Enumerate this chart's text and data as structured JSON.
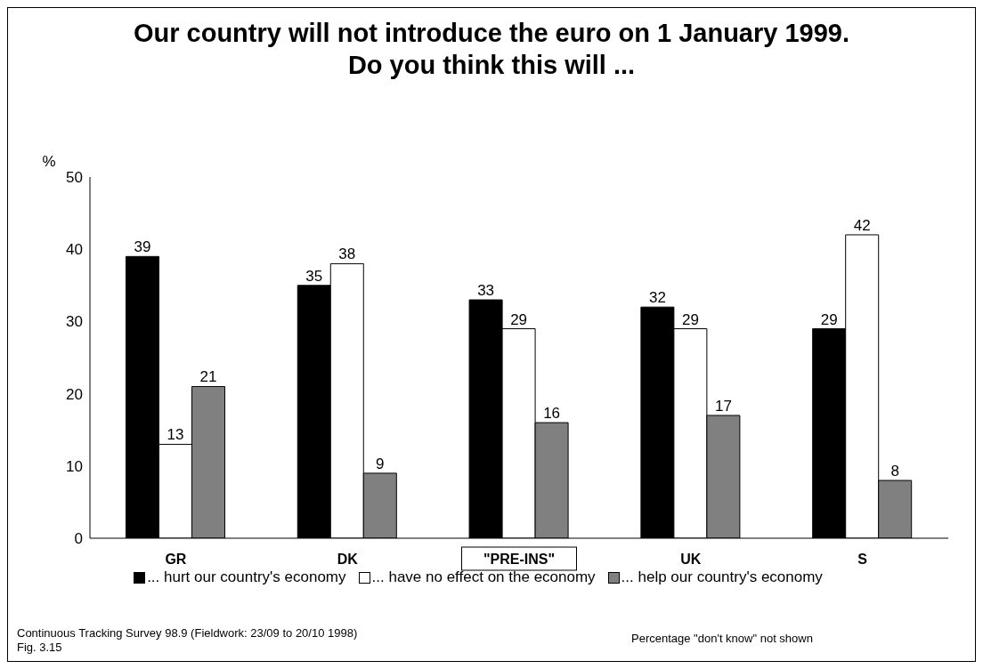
{
  "chart_data": {
    "type": "bar",
    "title": "Our country will not introduce the euro on 1 January 1999.\nDo you think this will ...",
    "ylabel": "%",
    "categories": [
      "GR",
      "DK",
      "\"PRE-INS\"",
      "UK",
      "S"
    ],
    "series": [
      {
        "name": "... hurt our country's economy",
        "color": "#000000",
        "values": [
          39,
          35,
          33,
          32,
          29
        ]
      },
      {
        "name": "... have no effect on the economy",
        "color": "#ffffff",
        "values": [
          13,
          38,
          29,
          29,
          42
        ]
      },
      {
        "name": "... help our country's economy",
        "color": "#808080",
        "values": [
          21,
          9,
          16,
          17,
          8
        ]
      }
    ],
    "ylim": [
      0,
      50
    ],
    "yticks": [
      0,
      10,
      20,
      30,
      40,
      50
    ],
    "grid": false,
    "legend": "bottom",
    "data_labels": true,
    "annotations": [
      "Continuous Tracking Survey 98.9 (Fieldwork: 23/09 to 20/10 1998)\nFig. 3.15",
      "Percentage \"don't know\" not shown"
    ]
  }
}
